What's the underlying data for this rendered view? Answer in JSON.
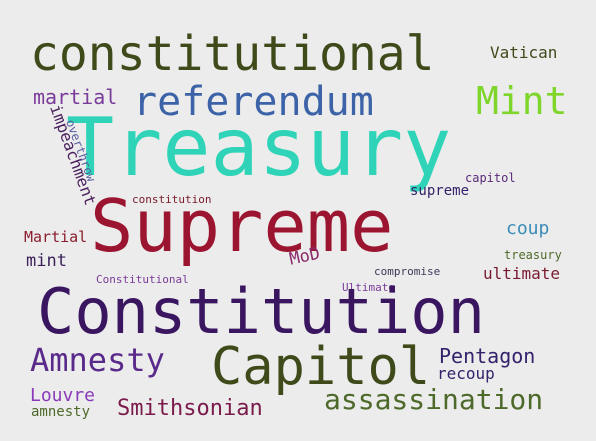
{
  "word_cloud": {
    "background_color": "#ececec",
    "words": [
      {
        "text": "constitutional",
        "color": "#3f4a1b"
      },
      {
        "text": "Vatican",
        "color": "#3f4a1b"
      },
      {
        "text": "referendum",
        "color": "#3c62a8"
      },
      {
        "text": "Mint",
        "color": "#7ed62a"
      },
      {
        "text": "martial",
        "color": "#7a3b9a"
      },
      {
        "text": "Treasury",
        "color": "#2fd4b8"
      },
      {
        "text": "impeachment",
        "color": "#4a1f5e"
      },
      {
        "text": "overthrow",
        "color": "#5a5fa0"
      },
      {
        "text": "capitol",
        "color": "#5a2a7a"
      },
      {
        "text": "supreme",
        "color": "#35226a"
      },
      {
        "text": "constitution",
        "color": "#7a1a2a"
      },
      {
        "text": "Supreme",
        "color": "#9c1530"
      },
      {
        "text": "coup",
        "color": "#3b8cb8"
      },
      {
        "text": "Martial",
        "color": "#8a1e2e"
      },
      {
        "text": "treasury",
        "color": "#4e6a2a"
      },
      {
        "text": "mint",
        "color": "#3a1f5a"
      },
      {
        "text": "MoD",
        "color": "#8a2a6a"
      },
      {
        "text": "compromise",
        "color": "#3a3a5a"
      },
      {
        "text": "ultimate",
        "color": "#7a1a30"
      },
      {
        "text": "Constitutional",
        "color": "#7a3b9a"
      },
      {
        "text": "Ultimate",
        "color": "#7a3b9a"
      },
      {
        "text": "Constitution",
        "color": "#3a1560"
      },
      {
        "text": "Amnesty",
        "color": "#5a2a8a"
      },
      {
        "text": "Capitol",
        "color": "#3f4a1b"
      },
      {
        "text": "Pentagon",
        "color": "#35226a"
      },
      {
        "text": "recoup",
        "color": "#35226a"
      },
      {
        "text": "Louvre",
        "color": "#8a3ab8"
      },
      {
        "text": "assassination",
        "color": "#4e6a2a"
      },
      {
        "text": "Smithsonian",
        "color": "#7a1a4a"
      },
      {
        "text": "amnesty",
        "color": "#4e6a2a"
      }
    ]
  }
}
